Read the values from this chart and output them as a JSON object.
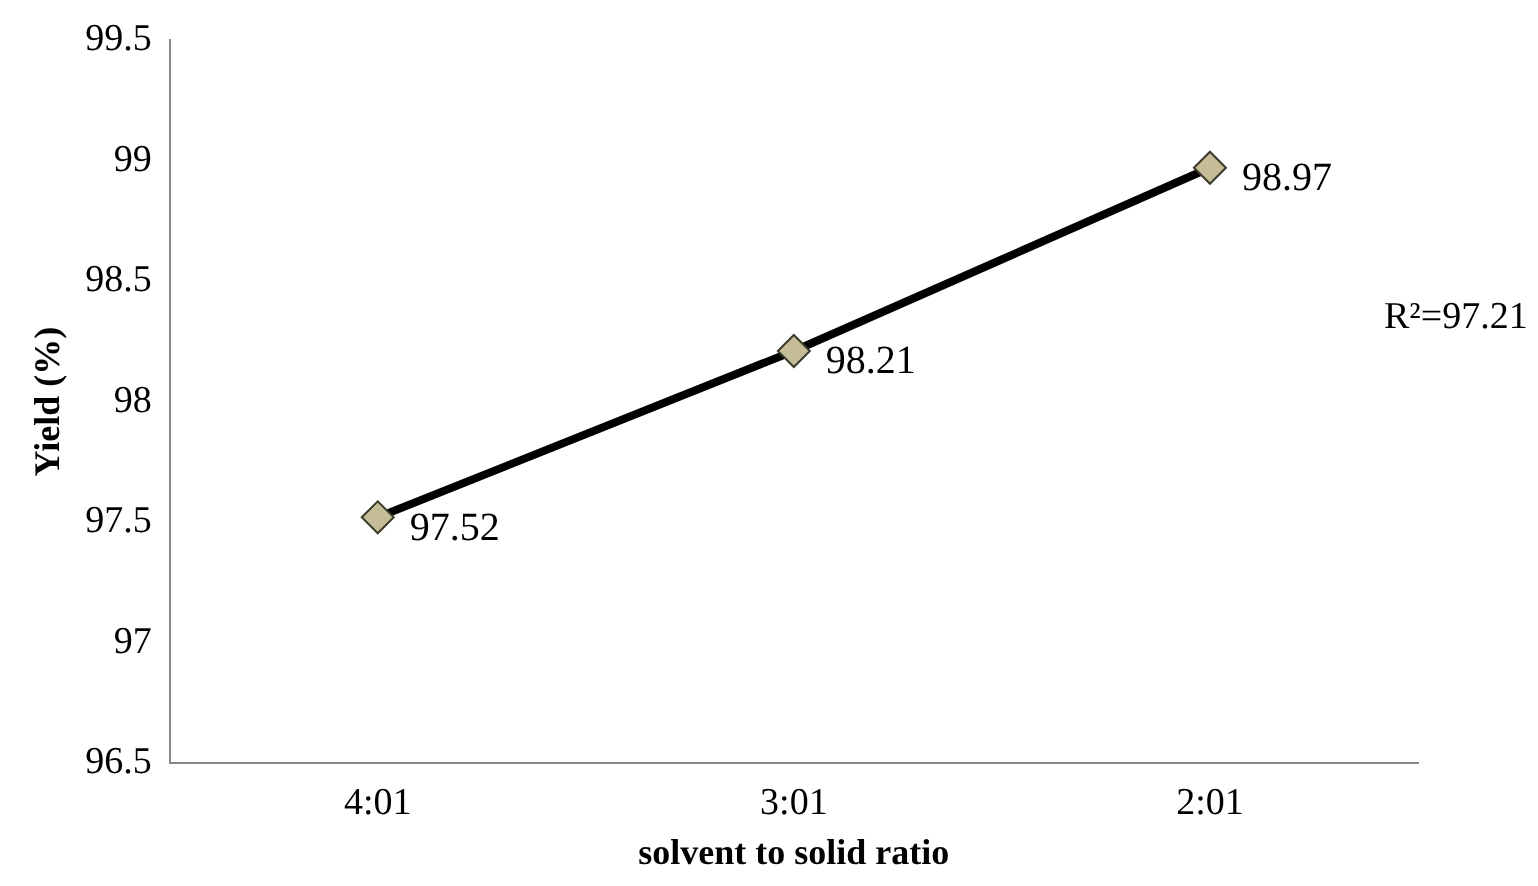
{
  "chart_data": {
    "type": "line",
    "xlabel": "solvent to solid ratio",
    "ylabel": "Yield (%)",
    "categories": [
      "4:01",
      "3:01",
      "2:01"
    ],
    "series": [
      {
        "color": "#000000",
        "colors": [
          "#c4bd97",
          "#c4bd97",
          "#c4bd97"
        ],
        "values": [
          97.52,
          98.21,
          98.97
        ]
      }
    ],
    "ylim": [
      96.5,
      99.5
    ],
    "yticks": [
      96.5,
      97,
      97.5,
      98,
      98.5,
      99,
      99.5
    ],
    "grid": false,
    "legend": false,
    "marker": "diamond",
    "line_style": "solid",
    "data_labels": true,
    "annotations": [
      "R²=97.21"
    ]
  }
}
